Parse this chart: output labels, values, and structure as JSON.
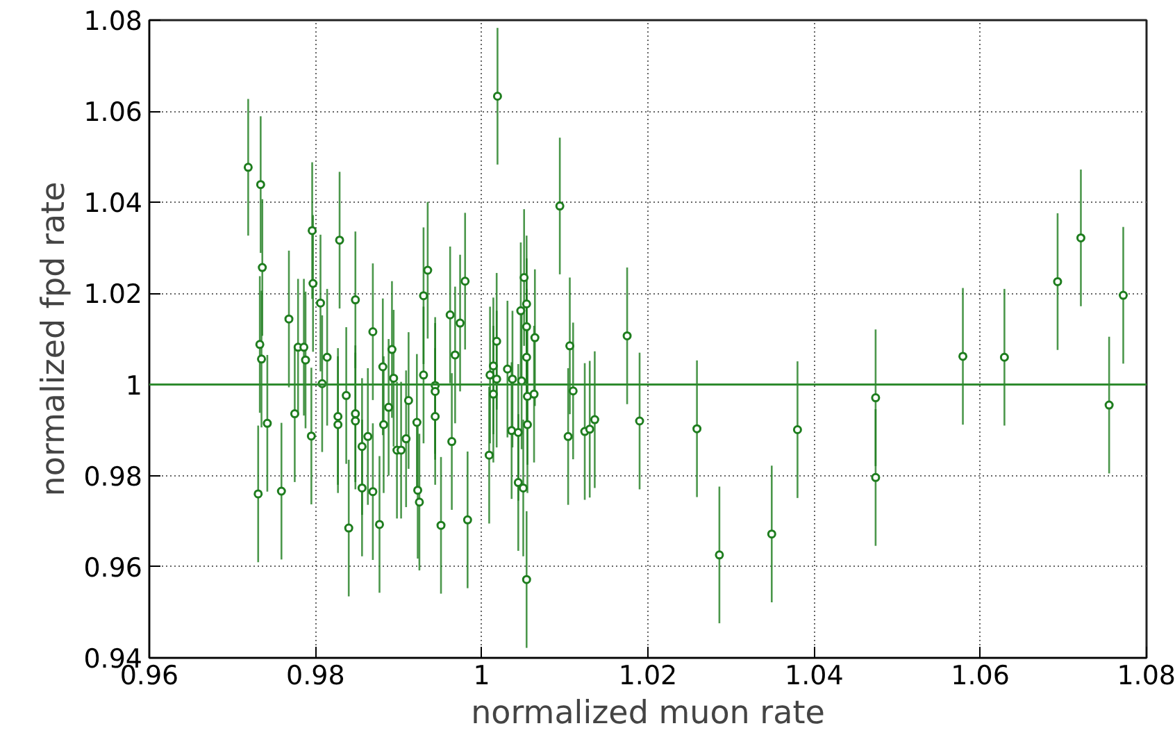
{
  "chart_data": {
    "type": "scatter",
    "xlabel": "normalized muon rate",
    "ylabel": "normalized fpd rate",
    "xlim": [
      0.96,
      1.08
    ],
    "ylim": [
      0.94,
      1.08
    ],
    "xticks": [
      0.96,
      0.98,
      1,
      1.02,
      1.04,
      1.06,
      1.08
    ],
    "yticks": [
      0.94,
      0.96,
      0.98,
      1,
      1.02,
      1.04,
      1.06,
      1.08
    ],
    "grid": true,
    "marker": "circle",
    "ref_lines": [
      {
        "axis": "y",
        "value": 1,
        "color": "#2e8b2e"
      }
    ],
    "series": [
      {
        "color": "#1e7d1e",
        "x": [
          0.9719,
          0.9734,
          0.9736,
          0.9733,
          0.9735,
          0.9731,
          0.9742,
          0.9759,
          0.9768,
          0.9775,
          0.9779,
          0.9786,
          0.9788,
          0.9796,
          0.9797,
          0.9806,
          0.9808,
          0.9795,
          0.9814,
          0.9829,
          0.9837,
          0.9827,
          0.9827,
          0.984,
          0.9848,
          0.9848,
          0.9848,
          0.9856,
          0.9856,
          0.9863,
          0.9869,
          0.9869,
          0.9877,
          0.9881,
          0.9882,
          0.9888,
          0.9892,
          0.9894,
          0.9898,
          0.9903,
          0.9909,
          0.9912,
          0.9922,
          0.9923,
          0.9925,
          0.993,
          0.993,
          0.9935,
          0.9944,
          0.9944,
          0.9944,
          0.9951,
          0.9962,
          0.9964,
          0.9968,
          0.9974,
          0.998,
          0.9983,
          1.0019,
          1.0009,
          1.001,
          1.0014,
          1.0014,
          1.0018,
          1.0018,
          1.0031,
          1.0036,
          1.0037,
          1.0044,
          1.0044,
          1.0047,
          1.0048,
          1.005,
          1.0051,
          1.0054,
          1.0054,
          1.0054,
          1.0055,
          1.0054,
          1.0055,
          1.0064,
          1.0063,
          1.0094,
          1.0106,
          1.0104,
          1.011,
          1.0124,
          1.013,
          1.0136,
          1.0175,
          1.019,
          1.0259,
          1.0286,
          1.0349,
          1.038,
          1.0474,
          1.0474,
          1.0579,
          1.0629,
          1.0693,
          1.0721,
          1.0755,
          1.0772
        ],
        "values": [
          1.0477,
          1.0439,
          1.0257,
          1.0088,
          1.0056,
          0.976,
          0.9915,
          0.9766,
          1.0144,
          0.9936,
          1.0082,
          1.0082,
          1.0054,
          1.0338,
          1.0222,
          1.0179,
          1.0002,
          0.9887,
          1.006,
          1.0317,
          0.9976,
          0.993,
          0.9912,
          0.9685,
          1.0186,
          0.9936,
          0.992,
          0.9864,
          0.9773,
          0.9886,
          1.0116,
          0.9765,
          0.9693,
          1.0039,
          0.9912,
          0.995,
          1.0077,
          1.0014,
          0.9856,
          0.9856,
          0.9881,
          0.9965,
          0.9917,
          0.9768,
          0.9742,
          1.0021,
          1.0195,
          1.0251,
          0.9998,
          0.9985,
          0.993,
          0.9691,
          1.0153,
          0.9875,
          1.0065,
          1.0135,
          1.0227,
          0.9703,
          1.0633,
          0.9845,
          1.0021,
          1.0041,
          0.9979,
          1.0012,
          1.0095,
          1.0034,
          0.9899,
          1.0012,
          0.9895,
          0.9785,
          1.0162,
          1.0008,
          0.9773,
          1.0235,
          1.0177,
          1.0127,
          1.006,
          0.9912,
          0.9572,
          0.9974,
          1.0103,
          0.9979,
          1.0392,
          1.0085,
          0.9886,
          0.9986,
          0.9897,
          0.9902,
          0.9923,
          1.0107,
          0.992,
          0.9903,
          0.9626,
          0.9672,
          0.9901,
          0.9971,
          0.9796,
          1.0062,
          1.006,
          1.0226,
          1.0322,
          0.9955,
          1.0196
        ],
        "errors": [
          0.015,
          0.015,
          0.015,
          0.015,
          0.015,
          0.015,
          0.015,
          0.015,
          0.015,
          0.015,
          0.015,
          0.015,
          0.015,
          0.015,
          0.015,
          0.015,
          0.015,
          0.015,
          0.015,
          0.015,
          0.015,
          0.015,
          0.015,
          0.015,
          0.015,
          0.015,
          0.015,
          0.015,
          0.015,
          0.015,
          0.015,
          0.015,
          0.015,
          0.015,
          0.015,
          0.015,
          0.015,
          0.015,
          0.015,
          0.015,
          0.015,
          0.015,
          0.015,
          0.015,
          0.015,
          0.015,
          0.015,
          0.015,
          0.015,
          0.015,
          0.015,
          0.015,
          0.015,
          0.015,
          0.015,
          0.015,
          0.015,
          0.015,
          0.015,
          0.015,
          0.015,
          0.015,
          0.015,
          0.015,
          0.015,
          0.015,
          0.015,
          0.015,
          0.015,
          0.015,
          0.015,
          0.015,
          0.015,
          0.015,
          0.015,
          0.015,
          0.015,
          0.015,
          0.015,
          0.015,
          0.015,
          0.015,
          0.015,
          0.015,
          0.015,
          0.015,
          0.015,
          0.015,
          0.015,
          0.015,
          0.015,
          0.015,
          0.015,
          0.015,
          0.015,
          0.015,
          0.015,
          0.015,
          0.015,
          0.015,
          0.015,
          0.015,
          0.015
        ]
      }
    ]
  }
}
